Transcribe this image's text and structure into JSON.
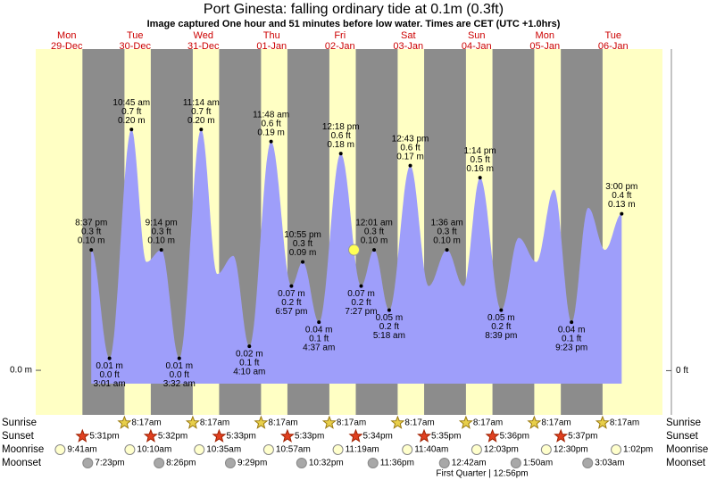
{
  "chart_data": {
    "type": "tide",
    "title": "Port Ginesta: falling  ordinary tide at 0.1m (0.3ft)",
    "subtitle": "Image captured One hour and 51 minutes before low water. Times are CET (UTC +1.0hrs)",
    "ylim": [
      -0.037,
      0.269
    ],
    "yticks": [
      {
        "value": 0,
        "label": "0.0 m"
      }
    ],
    "y2lim": [
      -0.12,
      0.88
    ],
    "y2ticks": [
      {
        "value": 0,
        "label": "0 ft"
      }
    ],
    "rows": [
      "Sunrise",
      "Sunset",
      "Moonrise",
      "Moonset"
    ],
    "moon_phase": "First Quarter | 12:56pm",
    "days": [
      {
        "day": "Mon",
        "date": "29-Dec",
        "sunrise": null,
        "sunset": "5:31pm",
        "moonrise": "9:41am",
        "moonset": "7:23pm",
        "tides": [
          {
            "time": "8:37 pm",
            "ft": "0.3 ft",
            "value": 0.1,
            "value_label": "0.10 m"
          }
        ]
      },
      {
        "day": "Tue",
        "date": "30-Dec",
        "sunrise": "8:17am",
        "sunset": "5:32pm",
        "moonrise": "10:10am",
        "moonset": "8:26pm",
        "tides": [
          {
            "time": "3:01 am",
            "ft": "0.0 ft",
            "value": 0.01,
            "value_label": "0.01 m"
          },
          {
            "time": "10:45 am",
            "ft": "0.7 ft",
            "value": 0.2,
            "value_label": "0.20 m"
          },
          {
            "value": 0.09
          },
          {
            "time": "9:14 pm",
            "ft": "0.3 ft",
            "value": 0.1,
            "value_label": "0.10 m"
          }
        ]
      },
      {
        "day": "Wed",
        "date": "31-Dec",
        "sunrise": "8:17am",
        "sunset": "5:33pm",
        "moonrise": "10:35am",
        "moonset": "9:29pm",
        "tides": [
          {
            "time": "3:32 am",
            "ft": "0.0 ft",
            "value": 0.01,
            "value_label": "0.01 m"
          },
          {
            "time": "11:14 am",
            "ft": "0.7 ft",
            "value": 0.2,
            "value_label": "0.20 m"
          },
          {
            "value": 0.08
          },
          {
            "value": 0.095
          }
        ]
      },
      {
        "day": "Thu",
        "date": "01-Jan",
        "sunrise": "8:17am",
        "sunset": "5:33pm",
        "moonrise": "10:57am",
        "moonset": "10:32pm",
        "tides": [
          {
            "time": "4:10 am",
            "ft": "0.1 ft",
            "value": 0.02,
            "value_label": "0.02 m"
          },
          {
            "time": "11:48 am",
            "ft": "0.6 ft",
            "value": 0.19,
            "value_label": "0.19 m"
          },
          {
            "time": "6:57 pm",
            "ft": "0.2 ft",
            "value": 0.07,
            "value_label": "0.07 m"
          },
          {
            "time": "10:55 pm",
            "ft": "0.3 ft",
            "value": 0.09,
            "value_label": "0.09 m"
          }
        ]
      },
      {
        "day": "Fri",
        "date": "02-Jan",
        "sunrise": "8:17am",
        "sunset": "5:34pm",
        "moonrise": "11:19am",
        "moonset": "11:36pm",
        "current_level": 0.1,
        "tides": [
          {
            "time": "4:37 am",
            "ft": "0.1 ft",
            "value": 0.04,
            "value_label": "0.04 m"
          },
          {
            "time": "12:18 pm",
            "ft": "0.6 ft",
            "value": 0.18,
            "value_label": "0.18 m"
          },
          {
            "time": "7:27 pm",
            "ft": "0.2 ft",
            "value": 0.07,
            "value_label": "0.07 m"
          }
        ]
      },
      {
        "day": "Sat",
        "date": "03-Jan",
        "sunrise": "8:17am",
        "sunset": "5:35pm",
        "moonrise": "11:40am",
        "moonset": null,
        "tides": [
          {
            "time": "12:01 am",
            "ft": "0.3 ft",
            "value": 0.1,
            "value_label": "0.10 m"
          },
          {
            "time": "5:18 am",
            "ft": "0.2 ft",
            "value": 0.05,
            "value_label": "0.05 m"
          },
          {
            "time": "12:43 pm",
            "ft": "0.6 ft",
            "value": 0.17,
            "value_label": "0.17 m"
          },
          {
            "value": 0.07
          }
        ]
      },
      {
        "day": "Sun",
        "date": "04-Jan",
        "sunrise": "8:17am",
        "sunset": "5:36pm",
        "moonrise": "12:03pm",
        "moonset": "12:42am",
        "tides": [
          {
            "time": "1:36 am",
            "ft": "0.3 ft",
            "value": 0.1,
            "value_label": "0.10 m"
          },
          {
            "value": 0.07
          },
          {
            "time": "1:14 pm",
            "ft": "0.5 ft",
            "value": 0.16,
            "value_label": "0.16 m"
          },
          {
            "time": "8:39 pm",
            "ft": "0.2 ft",
            "value": 0.05,
            "value_label": "0.05 m"
          }
        ]
      },
      {
        "day": "Mon",
        "date": "05-Jan",
        "sunrise": "8:17am",
        "sunset": "5:37pm",
        "moonrise": "12:30pm",
        "moonset": "1:50am",
        "tides": [
          {
            "value": 0.11
          },
          {
            "value": 0.09
          },
          {
            "value": 0.15
          },
          {
            "time": "9:23 pm",
            "ft": "0.1 ft",
            "value": 0.04,
            "value_label": "0.04 m"
          }
        ]
      },
      {
        "day": "Tue",
        "date": "06-Jan",
        "sunrise": "8:17am",
        "sunset": null,
        "moonrise": "1:02pm",
        "moonset": "3:03am",
        "tides": [
          {
            "value": 0.135
          },
          {
            "value": 0.1
          },
          {
            "time": "3:00 pm",
            "ft": "0.4 ft",
            "value": 0.13,
            "value_label": "0.13 m"
          }
        ]
      }
    ]
  }
}
